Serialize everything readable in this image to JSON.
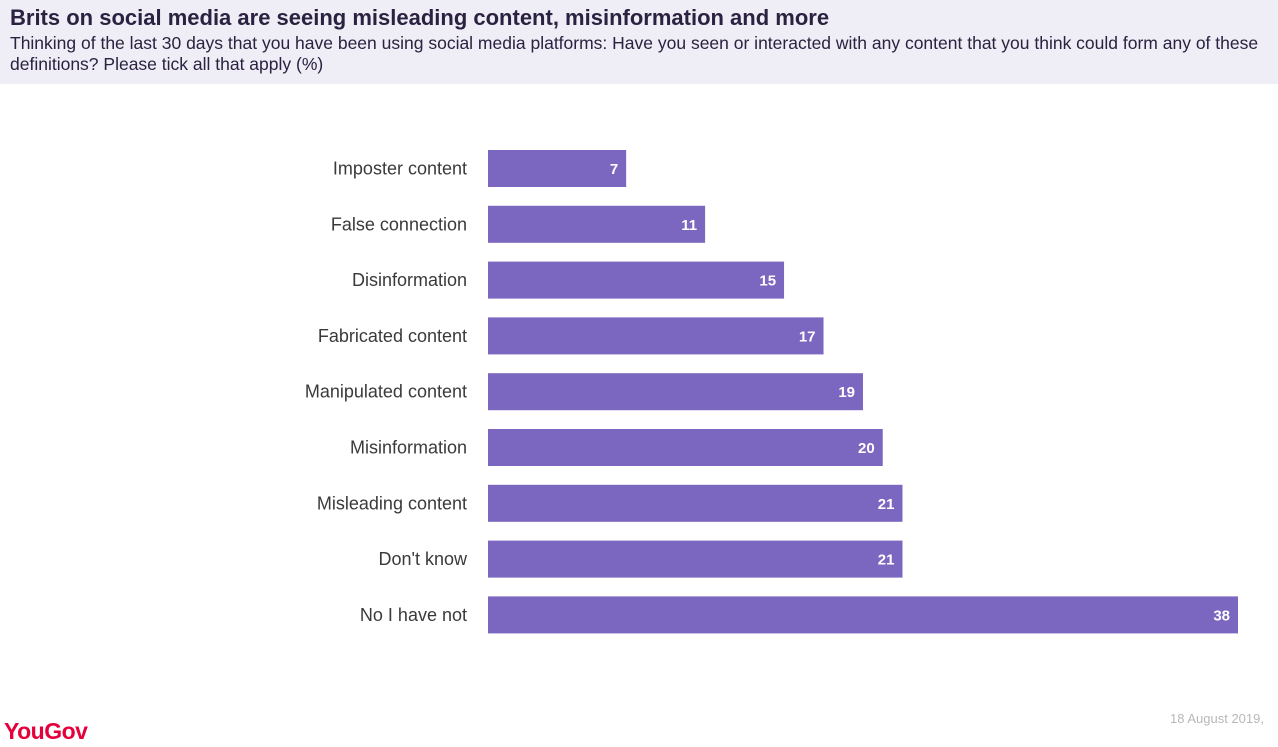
{
  "header": {
    "title": "Brits on social media are seeing misleading content, misinformation and more",
    "subtitle": "Thinking of the last 30 days that you have been using social media platforms: Have you seen or interacted with any content that you think could form any of these definitions? Please tick all that apply (%)"
  },
  "footer": {
    "logo_text": "YouGov",
    "date": "18 August 2019,"
  },
  "colors": {
    "bar": "#7b66c0",
    "header_bg": "#efedf5",
    "title": "#2a2240",
    "logo": "#e4003b"
  },
  "chart_data": {
    "type": "bar",
    "orientation": "horizontal",
    "categories": [
      "Imposter content",
      "False connection",
      "Disinformation",
      "Fabricated content",
      "Manipulated content",
      "Misinformation",
      "Misleading content",
      "Don't know",
      "No I have not"
    ],
    "values": [
      7,
      11,
      15,
      17,
      19,
      20,
      21,
      21,
      38
    ],
    "data_labels": true,
    "xlim": [
      0,
      38
    ],
    "grid": false,
    "legend": "none"
  }
}
